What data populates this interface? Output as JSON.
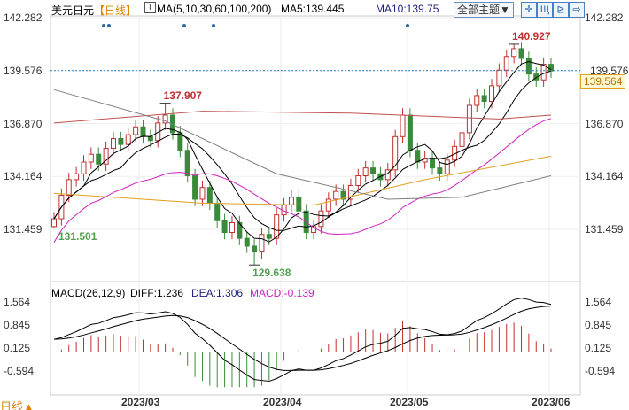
{
  "header": {
    "symbol": "美元日元",
    "period": "【日线】",
    "ma_label": "MA(5,10,30,60,100,200)",
    "ma5": "MA5:139.445",
    "ma10": "MA10:139.75",
    "theme_button": "全部主题▼"
  },
  "macd_header": {
    "label": "MACD(26,12,9)",
    "diff": "DIFF:1.236",
    "dea": "DEA:1.306",
    "macd": "MACD:-0.139"
  },
  "footer": {
    "period_toggle": "日线▲"
  },
  "chart_data": [
    {
      "type": "candlestick",
      "title": "美元日元 日线",
      "ylim": [
        131.459,
        142.282
      ],
      "y_ticks": [
        "142.282",
        "139.576",
        "136.870",
        "134.164",
        "131.459"
      ],
      "x_ticks": [
        "2023/03",
        "2023/04",
        "2023/05",
        "2023/06"
      ],
      "closes": [
        132.0,
        133.2,
        134.0,
        134.3,
        134.9,
        135.3,
        134.8,
        135.6,
        136.1,
        135.8,
        136.3,
        136.7,
        136.2,
        136.0,
        136.9,
        137.3,
        136.4,
        135.5,
        134.2,
        133.0,
        133.6,
        132.8,
        131.9,
        131.3,
        131.8,
        131.0,
        130.6,
        130.3,
        131.2,
        131.0,
        132.2,
        132.7,
        133.1,
        132.4,
        131.3,
        131.6,
        132.4,
        133.0,
        133.4,
        133.0,
        133.7,
        134.2,
        134.6,
        134.3,
        134.0,
        134.5,
        136.2,
        137.3,
        135.5,
        134.9,
        135.1,
        134.6,
        134.3,
        135.0,
        135.7,
        136.4,
        137.8,
        138.3,
        138.0,
        138.8,
        139.6,
        140.3,
        140.7,
        140.2,
        139.4,
        139.1,
        139.9,
        139.56
      ],
      "annotations": [
        {
          "text": "137.907",
          "index": 15,
          "value": 137.907,
          "kind": "high"
        },
        {
          "text": "129.638",
          "index": 27,
          "value": 129.638,
          "kind": "low"
        },
        {
          "text": "131.501",
          "index": 0,
          "value": 131.501,
          "kind": "low"
        },
        {
          "text": "140.927",
          "index": 62,
          "value": 140.927,
          "kind": "high"
        }
      ],
      "current_price": "139.576",
      "last_label": "139.564",
      "long_ma": [
        {
          "name": "MA60",
          "color": "#c05050",
          "points": [
            [
              0,
              136.9
            ],
            [
              20,
              137.5
            ],
            [
              40,
              137.4
            ],
            [
              60,
              137.1
            ],
            [
              67,
              137.3
            ]
          ]
        },
        {
          "name": "MA100",
          "color": "#e0a020",
          "points": [
            [
              0,
              133.3
            ],
            [
              20,
              132.8
            ],
            [
              35,
              132.7
            ],
            [
              50,
              134.0
            ],
            [
              67,
              135.2
            ]
          ]
        },
        {
          "name": "MA200",
          "color": "#808080",
          "points": [
            [
              0,
              138.6
            ],
            [
              15,
              137.0
            ],
            [
              30,
              134.3
            ],
            [
              45,
              133.0
            ],
            [
              55,
              133.1
            ],
            [
              67,
              134.2
            ]
          ]
        }
      ],
      "colors": {
        "up": "#c03030",
        "down": "#3a8a3a",
        "ma5": "#000000",
        "ma10": "#000000",
        "ma30": "#d020c0"
      }
    },
    {
      "type": "macd",
      "ylim": [
        -0.594,
        1.564
      ],
      "y_ticks": [
        "1.564",
        "0.845",
        "0.125",
        "-0.594"
      ]
    }
  ]
}
